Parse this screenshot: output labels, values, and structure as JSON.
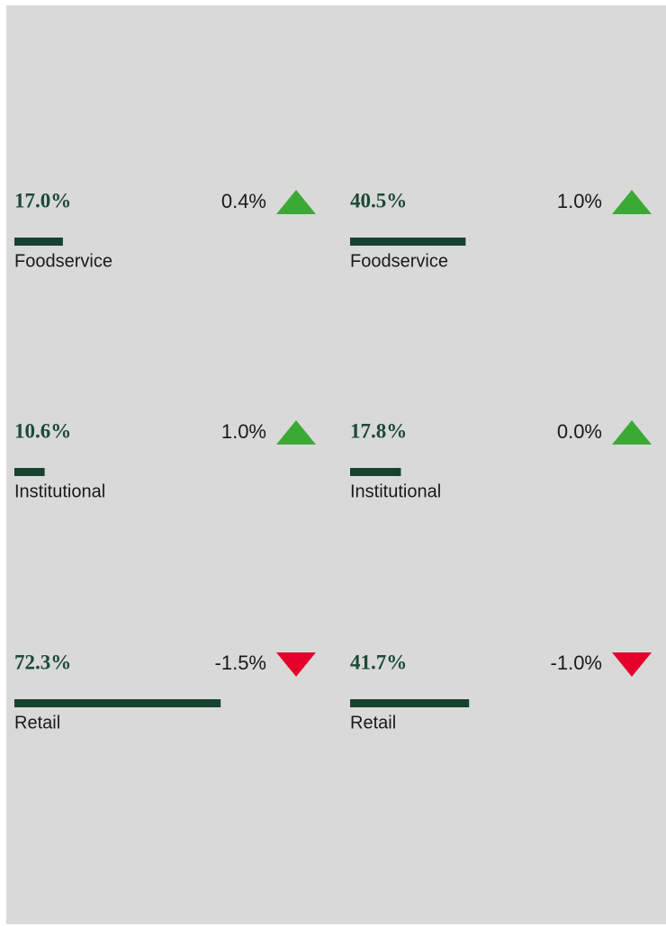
{
  "chart_data": {
    "type": "kpi",
    "xlim": [
      0,
      100
    ],
    "bar_color": "#16432f",
    "up_color": "#3aaa35",
    "down_color": "#e4002b",
    "panels": [
      {
        "items": [
          {
            "label": "Foodservice",
            "value": 17.0,
            "value_label": "17.0%",
            "change": 0.4,
            "change_label": "0.4%"
          },
          {
            "label": "Institutional",
            "value": 10.6,
            "value_label": "10.6%",
            "change": 1.0,
            "change_label": "1.0%"
          },
          {
            "label": "Retail",
            "value": 72.3,
            "value_label": "72.3%",
            "change": -1.5,
            "change_label": "-1.5%"
          }
        ]
      },
      {
        "items": [
          {
            "label": "Foodservice",
            "value": 40.5,
            "value_label": "40.5%",
            "change": 1.0,
            "change_label": "1.0%"
          },
          {
            "label": "Institutional",
            "value": 17.8,
            "value_label": "17.8%",
            "change": 0.0,
            "change_label": "0.0%"
          },
          {
            "label": "Retail",
            "value": 41.7,
            "value_label": "41.7%",
            "change": -1.0,
            "change_label": "-1.0%"
          }
        ]
      }
    ]
  }
}
